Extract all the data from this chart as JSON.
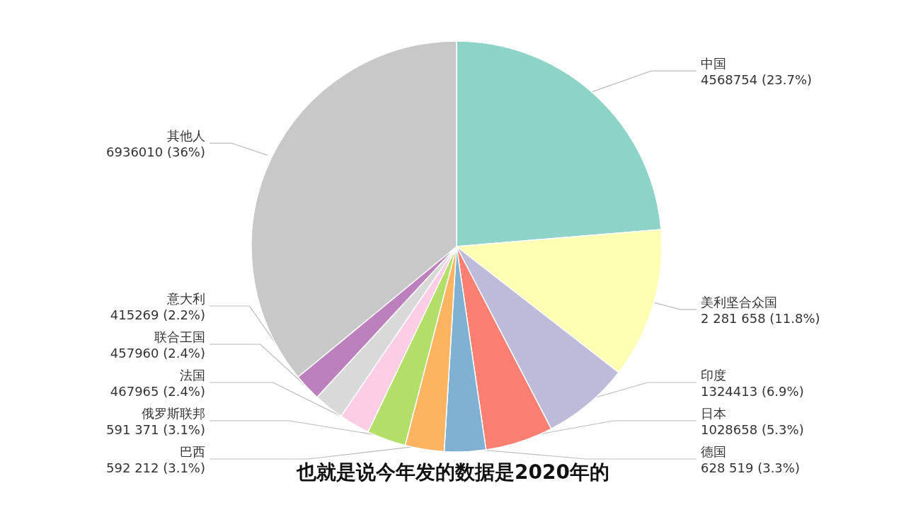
{
  "chart_data": {
    "type": "pie",
    "categories": [
      "中国",
      "美利坚合众国",
      "印度",
      "日本",
      "德国",
      "巴西",
      "俄罗斯联邦",
      "法国",
      "联合王国",
      "意大利",
      "其他人"
    ],
    "values": [
      4568754,
      2281658,
      1324413,
      1028658,
      628519,
      592212,
      591371,
      467965,
      457960,
      415269,
      6936010
    ],
    "value_labels": [
      "4568754 (23.7%)",
      "2 281 658 (11.8%)",
      "1324413 (6.9%)",
      "1028658 (5.3%)",
      "628 519 (3.3%)",
      "592 212 (3.1%)",
      "591 371 (3.1%)",
      "467965 (2.4%)",
      "457960 (2.4%)",
      "415269 (2.2%)",
      "6936010 (36%)"
    ],
    "colors": [
      "#8dd3c7",
      "#ffffb3",
      "#bebada",
      "#fb8072",
      "#80b1d3",
      "#fdb462",
      "#b3de69",
      "#fccde5",
      "#d9d9d9",
      "#bc80bd",
      "#c8c8c8"
    ],
    "annotations": [
      "也就是说今年发的数据是2020年的"
    ]
  }
}
